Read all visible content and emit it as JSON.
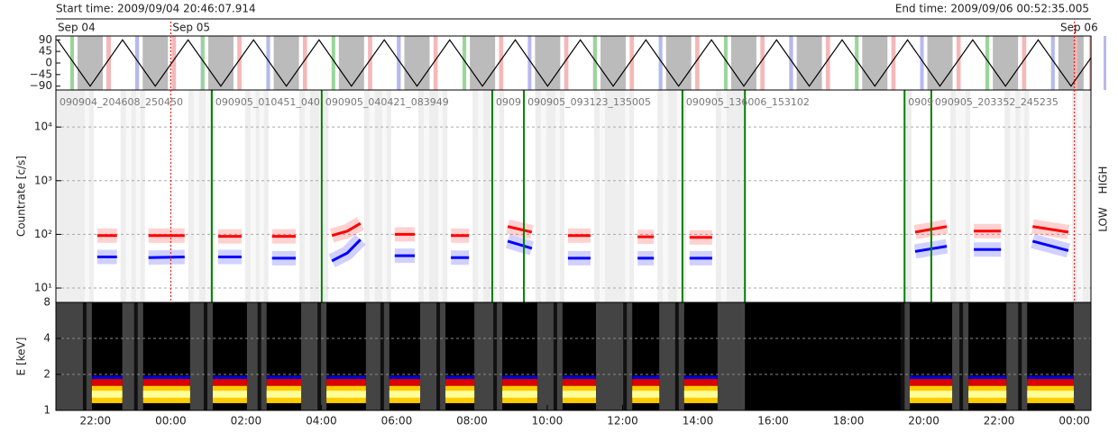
{
  "chart_data": {
    "type": "timeseries",
    "start_label": "Start time: 2009/09/04 20:46:07.914",
    "end_label": "End time: 2009/09/06 00:52:35.005",
    "xlim": [
      20.95,
      48.44
    ],
    "xticks": [
      {
        "value": 22,
        "label": "22:00"
      },
      {
        "value": 24,
        "label": "00:00"
      },
      {
        "value": 26,
        "label": "02:00"
      },
      {
        "value": 28,
        "label": "04:00"
      },
      {
        "value": 30,
        "label": "06:00"
      },
      {
        "value": 32,
        "label": "08:00"
      },
      {
        "value": 34,
        "label": "10:00"
      },
      {
        "value": 36,
        "label": "12:00"
      },
      {
        "value": 38,
        "label": "14:00"
      },
      {
        "value": 40,
        "label": "16:00"
      },
      {
        "value": 42,
        "label": "18:00"
      },
      {
        "value": 44,
        "label": "20:00"
      },
      {
        "value": 46,
        "label": "22:00"
      },
      {
        "value": 48,
        "label": "00:00"
      }
    ],
    "dates": [
      {
        "label": "Sep 04",
        "x": 20.95
      },
      {
        "label": "Sep 05",
        "x": 24
      },
      {
        "label": "Sep 06",
        "x": 48
      }
    ],
    "angle": {
      "ylim": [
        -105,
        105
      ],
      "yticks": [
        90,
        45,
        0,
        {
          "value": -45,
          "label": "−45"
        },
        {
          "value": -90,
          "label": "−90"
        }
      ],
      "color": "#000000",
      "x": [
        20.99,
        21.86,
        22.72,
        23.59,
        24.46,
        25.33,
        26.2,
        27.07,
        27.94,
        28.8,
        29.67,
        30.54,
        31.41,
        32.28,
        33.15,
        34.01,
        34.88,
        35.75,
        36.62,
        37.49,
        38.36,
        39.22,
        40.09,
        40.96,
        41.83,
        42.7,
        43.57,
        44.43,
        45.3,
        46.17,
        47.04,
        47.91,
        48.44
      ],
      "values": [
        90,
        -90,
        90,
        -90,
        90,
        -90,
        90,
        -90,
        90,
        -90,
        90,
        -90,
        90,
        -90,
        90,
        -90,
        90,
        -90,
        90,
        -90,
        90,
        -90,
        90,
        -90,
        90,
        -90,
        90,
        -90,
        90,
        -90,
        90,
        -90,
        20
      ]
    },
    "countrate": {
      "ylabel": "Countrate [c/s]",
      "log": true,
      "ylim": [
        5.4,
        49000
      ],
      "yticks": [
        {
          "value": 10,
          "label": "10¹"
        },
        {
          "value": 100,
          "label": "10²"
        },
        {
          "value": 1000,
          "label": "10³"
        },
        {
          "value": 10000,
          "label": "10⁴"
        }
      ],
      "grid": true,
      "x": [
        22.05,
        22.57,
        null,
        23.41,
        24.37,
        null,
        25.26,
        25.88,
        null,
        26.69,
        27.32,
        null,
        28.28,
        28.69,
        29.04,
        null,
        29.95,
        30.48,
        null,
        31.44,
        31.92,
        null,
        32.95,
        33.59,
        null,
        34.55,
        35.15,
        null,
        36.4,
        36.83,
        null,
        37.78,
        38.38,
        null,
        43.77,
        44.61,
        null,
        45.33,
        46.05,
        null,
        46.89,
        47.84
      ],
      "series": [
        {
          "name": "LOW",
          "color": "#ff0000",
          "values": [
            95,
            95,
            null,
            95,
            95,
            null,
            92,
            92,
            null,
            92,
            92,
            null,
            95,
            115,
            160,
            null,
            100,
            100,
            null,
            95,
            95,
            null,
            140,
            110,
            null,
            95,
            95,
            null,
            90,
            90,
            null,
            88,
            88,
            null,
            110,
            140,
            null,
            115,
            115,
            null,
            140,
            110
          ]
        },
        {
          "name": "HIGH",
          "color": "#0000ff",
          "values": [
            38,
            38,
            null,
            37,
            38,
            null,
            38,
            38,
            null,
            36,
            36,
            null,
            32,
            45,
            80,
            null,
            40,
            40,
            null,
            37,
            37,
            null,
            75,
            55,
            null,
            36,
            36,
            null,
            36,
            36,
            null,
            36,
            36,
            null,
            48,
            60,
            null,
            52,
            52,
            null,
            75,
            50
          ]
        }
      ],
      "boundaries": [
        25.09,
        28.01,
        32.54,
        33.38,
        37.59,
        39.25,
        43.49,
        44.2
      ],
      "boundary_color": "#008000",
      "files": [
        {
          "label": "090904_204608_250450",
          "x": 20.95
        },
        {
          "label": "090905_010451_040",
          "x": 25.09
        },
        {
          "label": "090905_040421_083949",
          "x": 28.01
        },
        {
          "label": "0909",
          "x": 32.54
        },
        {
          "label": "090905_093123_135005",
          "x": 33.38
        },
        {
          "label": "090905_136006_153102",
          "x": 37.59
        },
        {
          "label": "0909",
          "x": 43.49
        },
        {
          "label": "090905_203352_245235",
          "x": 44.2
        }
      ]
    },
    "spectrum": {
      "ylabel": "E [keV]",
      "log": true,
      "ylim": [
        1,
        8
      ],
      "yticks": [
        1,
        2,
        4,
        8
      ]
    }
  }
}
